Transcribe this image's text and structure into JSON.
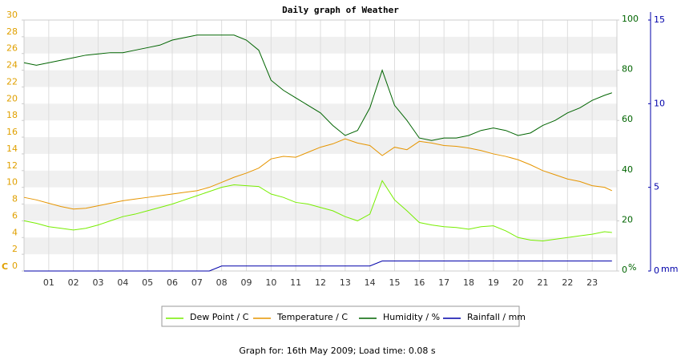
{
  "chart_data": {
    "type": "line",
    "title": "Daily graph of Weather",
    "footer": "Graph for: 16th May 2009; Load time: 0.08 s",
    "y_label": "C",
    "y2_label": "%",
    "y3_label": "mm",
    "x": [
      0,
      0.5,
      1,
      1.5,
      2,
      2.5,
      3,
      3.5,
      4,
      4.5,
      5,
      5.5,
      6,
      6.5,
      7,
      7.5,
      8,
      8.5,
      9,
      9.5,
      10,
      10.5,
      11,
      11.5,
      12,
      12.5,
      13,
      13.5,
      14,
      14.5,
      15,
      15.5,
      16,
      16.5,
      17,
      17.5,
      18,
      18.5,
      19,
      19.5,
      20,
      20.5,
      21,
      21.5,
      22,
      22.5,
      23,
      23.5,
      23.8
    ],
    "xlim": [
      0,
      24
    ],
    "xticks": [
      {
        "value": 1,
        "label": "01"
      },
      {
        "value": 2,
        "label": "02"
      },
      {
        "value": 3,
        "label": "03"
      },
      {
        "value": 4,
        "label": "04"
      },
      {
        "value": 5,
        "label": "05"
      },
      {
        "value": 6,
        "label": "06"
      },
      {
        "value": 7,
        "label": "07"
      },
      {
        "value": 8,
        "label": "08"
      },
      {
        "value": 9,
        "label": "09"
      },
      10,
      11,
      12,
      13,
      14,
      15,
      16,
      17,
      18,
      19,
      20,
      21,
      22,
      23
    ],
    "ylim": [
      0,
      30
    ],
    "yticks": [
      0,
      2,
      4,
      6,
      8,
      10,
      12,
      14,
      16,
      18,
      20,
      22,
      24,
      26,
      28,
      30
    ],
    "y2lim": [
      0,
      100
    ],
    "y2ticks": [
      0,
      20,
      40,
      60,
      80,
      100
    ],
    "y3lim": [
      0,
      15
    ],
    "y3ticks": [
      0,
      5,
      10,
      15
    ],
    "grid": true,
    "axis_colors": {
      "y": "#e0a000",
      "y2": "#006400",
      "y3": "#0000aa"
    },
    "series": [
      {
        "name": "Dew Point / C",
        "color": "#77ee00",
        "axis": "y",
        "values": [
          6.0,
          5.7,
          5.3,
          5.1,
          4.9,
          5.1,
          5.5,
          6.0,
          6.5,
          6.8,
          7.2,
          7.6,
          8.0,
          8.5,
          9.0,
          9.5,
          10.0,
          10.3,
          10.2,
          10.1,
          9.2,
          8.8,
          8.2,
          8.0,
          7.6,
          7.2,
          6.5,
          6.0,
          6.8,
          10.8,
          8.5,
          7.2,
          5.8,
          5.5,
          5.3,
          5.2,
          5.0,
          5.3,
          5.4,
          4.8,
          4.0,
          3.7,
          3.6,
          3.8,
          4.0,
          4.2,
          4.4,
          4.7,
          4.6
        ]
      },
      {
        "name": "Temperature / C",
        "color": "#e69500",
        "axis": "y",
        "values": [
          8.8,
          8.5,
          8.1,
          7.7,
          7.4,
          7.5,
          7.8,
          8.1,
          8.4,
          8.6,
          8.8,
          9.0,
          9.2,
          9.4,
          9.6,
          10.0,
          10.6,
          11.2,
          11.7,
          12.3,
          13.4,
          13.7,
          13.6,
          14.2,
          14.8,
          15.2,
          15.8,
          15.3,
          15.0,
          13.8,
          14.8,
          14.5,
          15.5,
          15.3,
          15.0,
          14.9,
          14.7,
          14.4,
          14.0,
          13.7,
          13.3,
          12.7,
          12.0,
          11.5,
          11.0,
          10.7,
          10.2,
          10.0,
          9.6
        ]
      },
      {
        "name": "Humidity / %",
        "color": "#006400",
        "axis": "y2",
        "values": [
          83,
          82,
          83,
          84,
          85,
          86,
          86.5,
          87,
          87,
          88,
          89,
          90,
          92,
          93,
          94,
          94,
          94,
          94,
          92,
          88,
          76,
          72,
          69,
          66,
          63,
          58,
          54,
          56,
          65,
          80,
          66,
          60,
          53,
          52,
          53,
          53,
          54,
          56,
          57,
          56,
          54,
          55,
          58,
          60,
          63,
          65,
          68,
          70,
          71
        ]
      },
      {
        "name": "Rainfall / mm",
        "color": "#0000aa",
        "axis": "y3",
        "values": [
          0,
          0,
          0,
          0,
          0,
          0,
          0,
          0,
          0,
          0,
          0,
          0,
          0,
          0,
          0,
          0,
          0.3,
          0.3,
          0.3,
          0.3,
          0.3,
          0.3,
          0.3,
          0.3,
          0.3,
          0.3,
          0.3,
          0.3,
          0.3,
          0.6,
          0.6,
          0.6,
          0.6,
          0.6,
          0.6,
          0.6,
          0.6,
          0.6,
          0.6,
          0.6,
          0.6,
          0.6,
          0.6,
          0.6,
          0.6,
          0.6,
          0.6,
          0.6,
          0.6
        ]
      }
    ]
  }
}
